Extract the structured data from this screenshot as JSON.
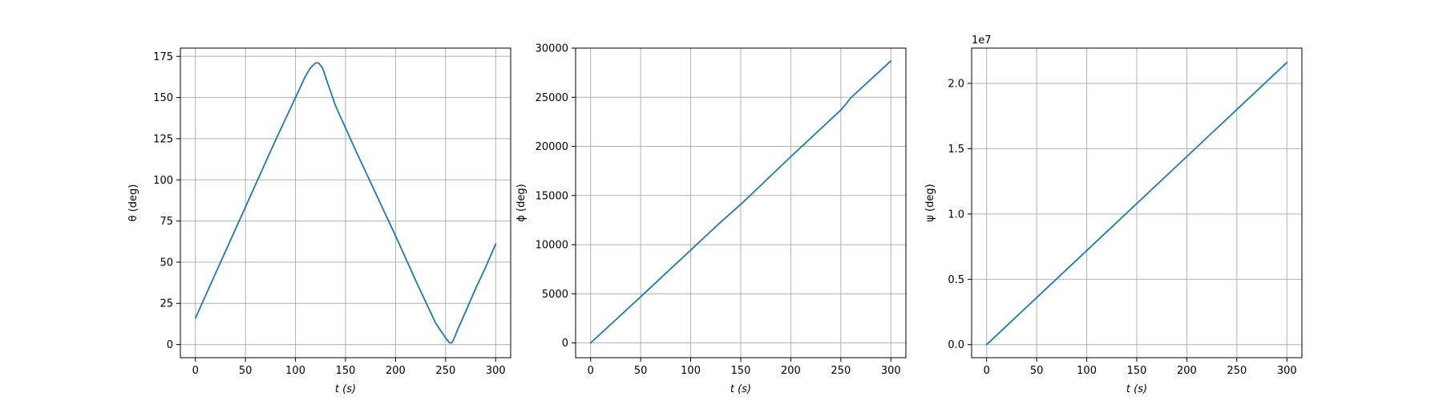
{
  "chart_data": [
    {
      "type": "line",
      "xlabel": "t (s)",
      "ylabel": "θ (deg)",
      "xlim": [
        -15,
        315
      ],
      "ylim": [
        -8,
        180
      ],
      "xticks": [
        0,
        50,
        100,
        150,
        200,
        250,
        300
      ],
      "yticks": [
        0,
        25,
        50,
        75,
        100,
        125,
        150,
        175
      ],
      "yticklabels": [
        "0",
        "25",
        "50",
        "75",
        "100",
        "125",
        "150",
        "175"
      ],
      "grid": true,
      "series": [
        {
          "color": "#1f77b4",
          "x": [
            0,
            20,
            40,
            60,
            80,
            100,
            110,
            115,
            120,
            123,
            127,
            132,
            140,
            160,
            180,
            200,
            220,
            240,
            250,
            254,
            256,
            258,
            262,
            270,
            280,
            290,
            300
          ],
          "y": [
            16,
            43,
            70,
            97,
            124,
            150,
            163,
            168,
            171,
            171,
            168,
            159,
            145,
            118,
            92,
            66,
            39,
            13,
            4,
            1,
            1,
            3,
            9,
            20,
            34,
            47,
            61
          ]
        }
      ]
    },
    {
      "type": "line",
      "xlabel": "t (s)",
      "ylabel": "ϕ (deg)",
      "xlim": [
        -15,
        315
      ],
      "ylim": [
        -1500,
        30000
      ],
      "xticks": [
        0,
        50,
        100,
        150,
        200,
        250,
        300
      ],
      "yticks": [
        0,
        5000,
        10000,
        15000,
        20000,
        25000,
        30000
      ],
      "yticklabels": [
        "0",
        "5000",
        "10000",
        "15000",
        "20000",
        "25000",
        "30000"
      ],
      "grid": true,
      "series": [
        {
          "color": "#1f77b4",
          "x": [
            0,
            50,
            100,
            130,
            150,
            200,
            250,
            255,
            260,
            300
          ],
          "y": [
            0,
            4700,
            9450,
            12300,
            14100,
            18950,
            23700,
            24300,
            24950,
            28700
          ]
        }
      ]
    },
    {
      "type": "line",
      "xlabel": "t (s)",
      "ylabel": "ψ (deg)",
      "offset_label": "1e7",
      "xlim": [
        -15,
        315
      ],
      "ylim": [
        -0.1,
        2.27
      ],
      "xticks": [
        0,
        50,
        100,
        150,
        200,
        250,
        300
      ],
      "yticks": [
        0.0,
        0.5,
        1.0,
        1.5,
        2.0
      ],
      "yticklabels": [
        "0.0",
        "0.5",
        "1.0",
        "1.5",
        "2.0"
      ],
      "grid": true,
      "series": [
        {
          "color": "#1f77b4",
          "x": [
            0,
            300
          ],
          "y": [
            0.0,
            2.16
          ]
        }
      ]
    }
  ]
}
